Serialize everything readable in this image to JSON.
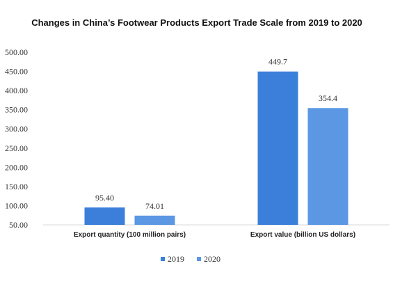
{
  "chart_data": {
    "type": "bar",
    "title": "Changes in China’s Footwear Products Export Trade Scale from 2019 to 2020",
    "categories": [
      "Export quantity (100 million pairs)",
      "Export value (billion US dollars)"
    ],
    "series": [
      {
        "name": "2019",
        "values": [
          95.4,
          449.7
        ],
        "labels": [
          "95.40",
          "449.7"
        ],
        "color": "#3c7fdb"
      },
      {
        "name": "2020",
        "values": [
          74.01,
          354.4
        ],
        "labels": [
          "74.01",
          "354.4"
        ],
        "color": "#5b97e3"
      }
    ],
    "ylim": [
      50,
      500
    ],
    "yticks": [
      "50.00",
      "100.00",
      "150.00",
      "200.00",
      "250.00",
      "300.00",
      "350.00",
      "400.00",
      "450.00",
      "500.00"
    ],
    "xlabel": "",
    "ylabel": "",
    "grid": false,
    "legend_position": "bottom"
  }
}
